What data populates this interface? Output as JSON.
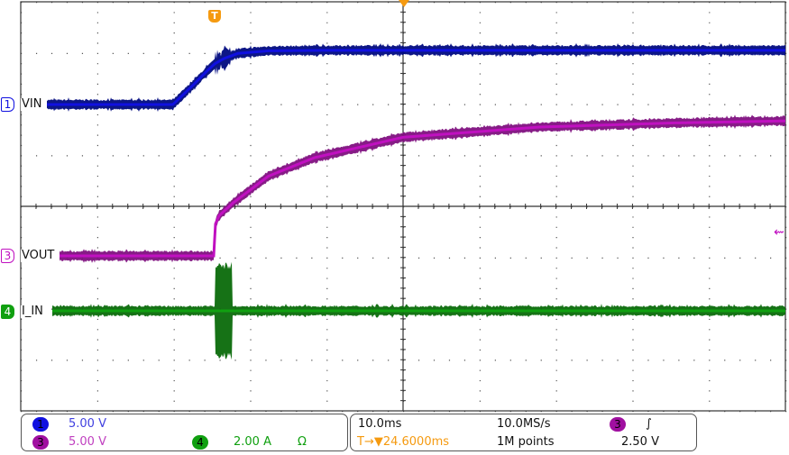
{
  "colors": {
    "ch1": "#1010e0",
    "ch3": "#c010c0",
    "ch4": "#10a010",
    "trigger": "#f59a10",
    "grid": "#404040"
  },
  "channels": [
    {
      "id": "1",
      "label": "VIN",
      "scale": "5.00 V",
      "color": "#1010e0"
    },
    {
      "id": "3",
      "label": "VOUT",
      "scale": "5.00 V",
      "color": "#c010c0"
    },
    {
      "id": "4",
      "label": "I_IN",
      "scale": "2.00 A",
      "coupling_symbol": "Ω",
      "color": "#10a010"
    }
  ],
  "timebase": {
    "time_per_div": "10.0ms",
    "sample_rate": "10.0MS/s",
    "record_length": "1M points",
    "trigger_delay": "24.6000ms",
    "trigger_delay_prefix": "T→▼"
  },
  "trigger": {
    "marker": "T",
    "source": "3",
    "slope_symbol": "∫",
    "level": "2.50 V"
  },
  "chart_data": {
    "type": "line",
    "title": "",
    "xlabel": "",
    "ylabel": "",
    "x_units": "ms (relative to trigger)",
    "xlim": [
      -25.4,
      74.6
    ],
    "grid": true,
    "divisions": {
      "horizontal": 10,
      "vertical": 8
    },
    "series": [
      {
        "name": "VIN",
        "channel": "1",
        "units": "V",
        "t": [
          -25.4,
          -5.5,
          -3,
          -1,
          0,
          1.2,
          3,
          7,
          15,
          74.6
        ],
        "y": [
          0,
          0,
          1.8,
          3.3,
          4.0,
          4.5,
          5.0,
          5.25,
          5.3,
          5.3
        ],
        "disturbance": {
          "t_start": 0,
          "t_end": 2.2,
          "amplitude": 0.8
        }
      },
      {
        "name": "VOUT",
        "channel": "3",
        "units": "V",
        "t": [
          -25.4,
          -0.1,
          0,
          0.5,
          2.4,
          7,
          13,
          24.6,
          42.5,
          60,
          74.6
        ],
        "y": [
          0,
          0,
          3.0,
          3.9,
          5.2,
          7.8,
          9.6,
          11.6,
          12.6,
          13.0,
          13.2
        ]
      },
      {
        "name": "I_IN",
        "channel": "4",
        "units": "A",
        "t": [
          -25.4,
          74.6
        ],
        "y": [
          0,
          0
        ],
        "burst": {
          "t_start": 0,
          "t_end": 2.2,
          "amplitude": 1.9
        }
      }
    ]
  }
}
